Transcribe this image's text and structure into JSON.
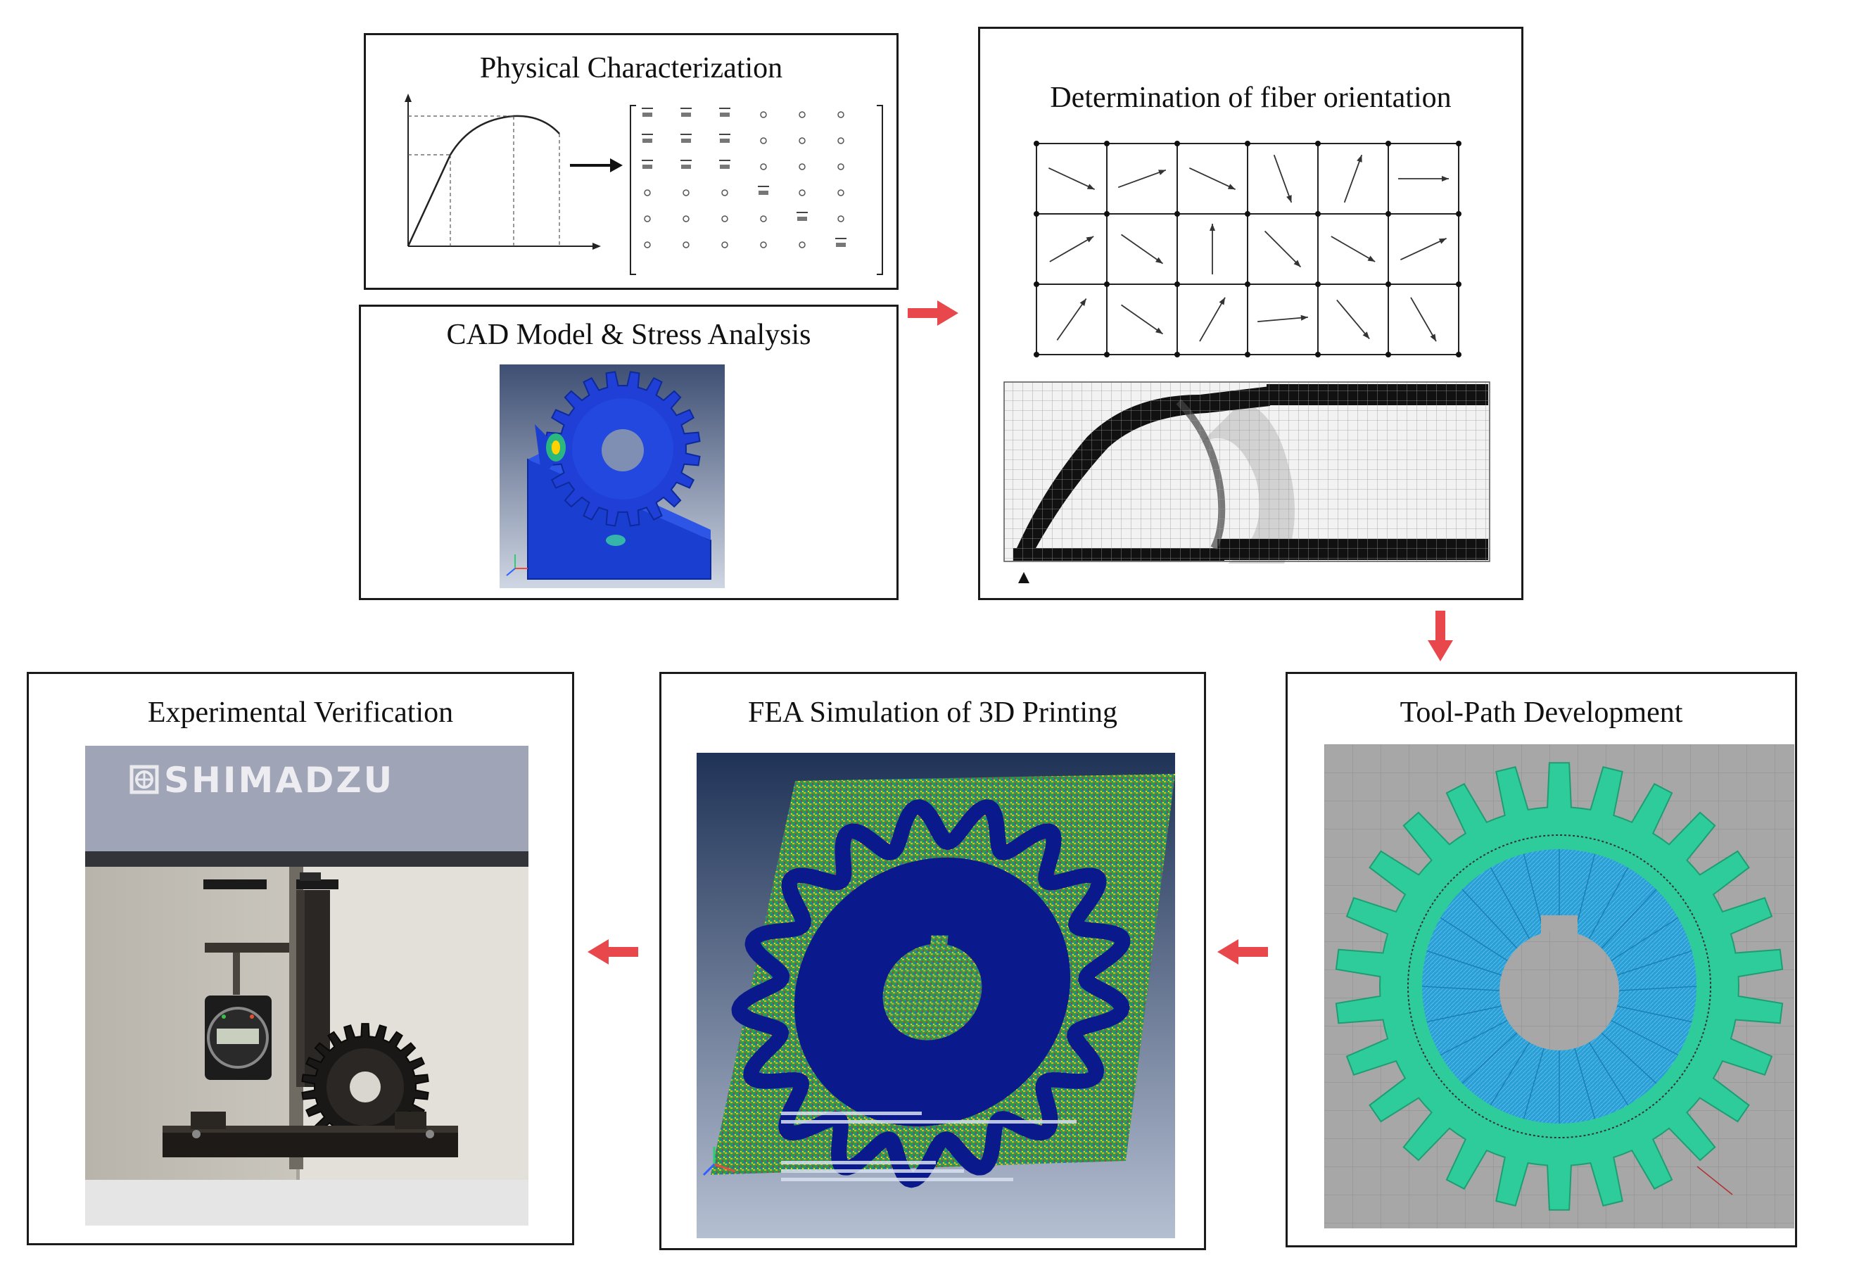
{
  "panels": {
    "physical": {
      "title": "Physical Characterization"
    },
    "cad": {
      "title": "CAD Model & Stress Analysis"
    },
    "fiber": {
      "title": "Determination of fiber orientation"
    },
    "toolpath": {
      "title": "Tool-Path Development"
    },
    "fea": {
      "title": "FEA Simulation of 3D Printing"
    },
    "experimental": {
      "title": "Experimental Verification",
      "brand": "SHIMADZU"
    }
  },
  "fiber_grid": {
    "angles": [
      [
        -25,
        20,
        -25,
        -70,
        70,
        0
      ],
      [
        30,
        -35,
        90,
        -45,
        -30,
        25
      ],
      [
        55,
        -35,
        60,
        5,
        -50,
        -60
      ]
    ]
  },
  "colors": {
    "arrow": "#e8474b",
    "fea_blue": "#0a1a8c",
    "toolpath_teal": "#2ecc9a",
    "toolpath_blue": "#2a9fd6"
  }
}
